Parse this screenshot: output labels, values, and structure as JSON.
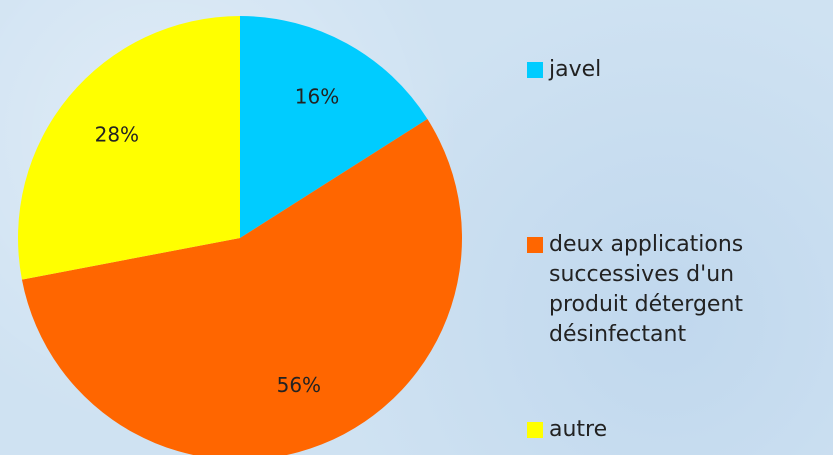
{
  "chart_data": {
    "type": "pie",
    "categories": [
      "javel",
      "deux applications successives d'un produit détergent désinfectant",
      "autre"
    ],
    "values": [
      16,
      56,
      28
    ],
    "value_labels": [
      "16%",
      "56%",
      "28%"
    ],
    "colors": [
      "#00ccff",
      "#ff6600",
      "#ffff00"
    ],
    "legend": "right"
  }
}
